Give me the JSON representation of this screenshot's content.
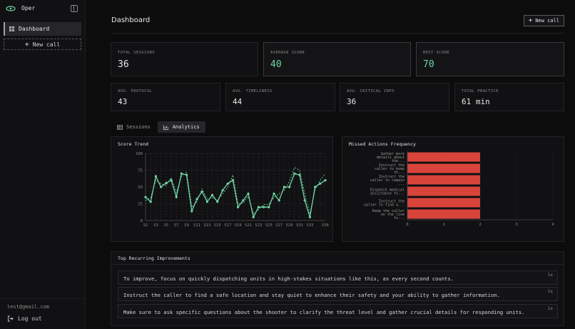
{
  "app": {
    "name": "Oper"
  },
  "sidebar": {
    "items": [
      {
        "label": "Dashboard"
      }
    ],
    "new_call_label": "New call",
    "user_email": "test@gmail.com",
    "logout_label": "Log out"
  },
  "header": {
    "title": "Dashboard",
    "new_call_label": "New call"
  },
  "stats_top": [
    {
      "label": "TOTAL SESSIONS",
      "value": "36"
    },
    {
      "label": "AVERAGE SCORE",
      "value": "40"
    },
    {
      "label": "BEST SCORE",
      "value": "70"
    }
  ],
  "stats_bottom": [
    {
      "label": "AVG. PROTOCOL",
      "value": "43"
    },
    {
      "label": "AVG. TIMELINESS",
      "value": "44"
    },
    {
      "label": "AVG. CRITICAL INFO",
      "value": "36"
    },
    {
      "label": "TOTAL PRACTICE",
      "value": "61 min"
    }
  ],
  "tabs": [
    {
      "label": "Sessions"
    },
    {
      "label": "Analytics"
    }
  ],
  "colors": {
    "accent": "#6fd6a4",
    "bar": "#d9443a"
  },
  "chart_data": [
    {
      "type": "line",
      "title": "Score Trend",
      "x": [
        "S1",
        "S2",
        "S3",
        "S4",
        "S5",
        "S6",
        "S7",
        "S8",
        "S9",
        "S10",
        "S11",
        "S12",
        "S13",
        "S14",
        "S15",
        "S16",
        "S17",
        "S18",
        "S19",
        "S20",
        "S21",
        "S22",
        "S23",
        "S24",
        "S25",
        "S26",
        "S27",
        "S28",
        "S29",
        "S30",
        "S31",
        "S32",
        "S33",
        "S34",
        "S35",
        "S36"
      ],
      "x_tick_labels": [
        "S1",
        "S3",
        "S5",
        "S7",
        "S9",
        "S11",
        "S13",
        "S15",
        "S17",
        "S19",
        "S21",
        "S23",
        "S25",
        "S27",
        "S29",
        "S31",
        "S33",
        "S36"
      ],
      "series": [
        {
          "values": [
            35,
            28,
            66,
            50,
            56,
            60,
            35,
            70,
            68,
            14,
            32,
            43,
            28,
            38,
            28,
            45,
            55,
            60,
            20,
            30,
            40,
            5,
            20,
            20,
            20,
            40,
            30,
            50,
            50,
            70,
            68,
            30,
            5,
            50,
            55,
            60
          ],
          "style": "solid"
        },
        {
          "values": [
            30,
            34,
            60,
            55,
            52,
            64,
            42,
            66,
            72,
            20,
            28,
            47,
            32,
            34,
            30,
            40,
            50,
            68,
            25,
            26,
            36,
            10,
            16,
            24,
            24,
            34,
            40,
            45,
            58,
            79,
            75,
            40,
            10,
            46,
            60,
            70
          ],
          "style": "dashed"
        }
      ],
      "ylim": [
        0,
        100
      ],
      "y_ticks": [
        0,
        25,
        50,
        75,
        100
      ],
      "grid": true
    },
    {
      "type": "bar",
      "orientation": "horizontal",
      "title": "Missed Actions Frequency",
      "categories": [
        [
          "Gather more",
          "details about",
          "the..."
        ],
        [
          "Instruct the",
          "caller to keep",
          "th..."
        ],
        [
          "Instruct the",
          "caller to remain",
          "..."
        ],
        [
          "Dispatch medical",
          "assistance to..."
        ],
        [
          "Instruct the",
          "caller to find a..."
        ],
        [
          "Keep the caller",
          "on the line",
          "fo..."
        ]
      ],
      "values": [
        2,
        2,
        2,
        2,
        2,
        2
      ],
      "xlim": [
        0,
        4
      ],
      "x_ticks": [
        0,
        1,
        2,
        3,
        4
      ],
      "grid": true
    }
  ],
  "improvements": {
    "title": "Top Recurring Improvements",
    "items": [
      {
        "text": "To improve, focus on quickly dispatching units in high-stakes situations like this, as every second counts.",
        "count": "1x"
      },
      {
        "text": "Instruct the caller to find a safe location and stay quiet to enhance their safety and your ability to gather information.",
        "count": "1x"
      },
      {
        "text": "Make sure to ask specific questions about the shooter to clarify the threat level and gather crucial details for responding units.",
        "count": "1x"
      }
    ]
  }
}
